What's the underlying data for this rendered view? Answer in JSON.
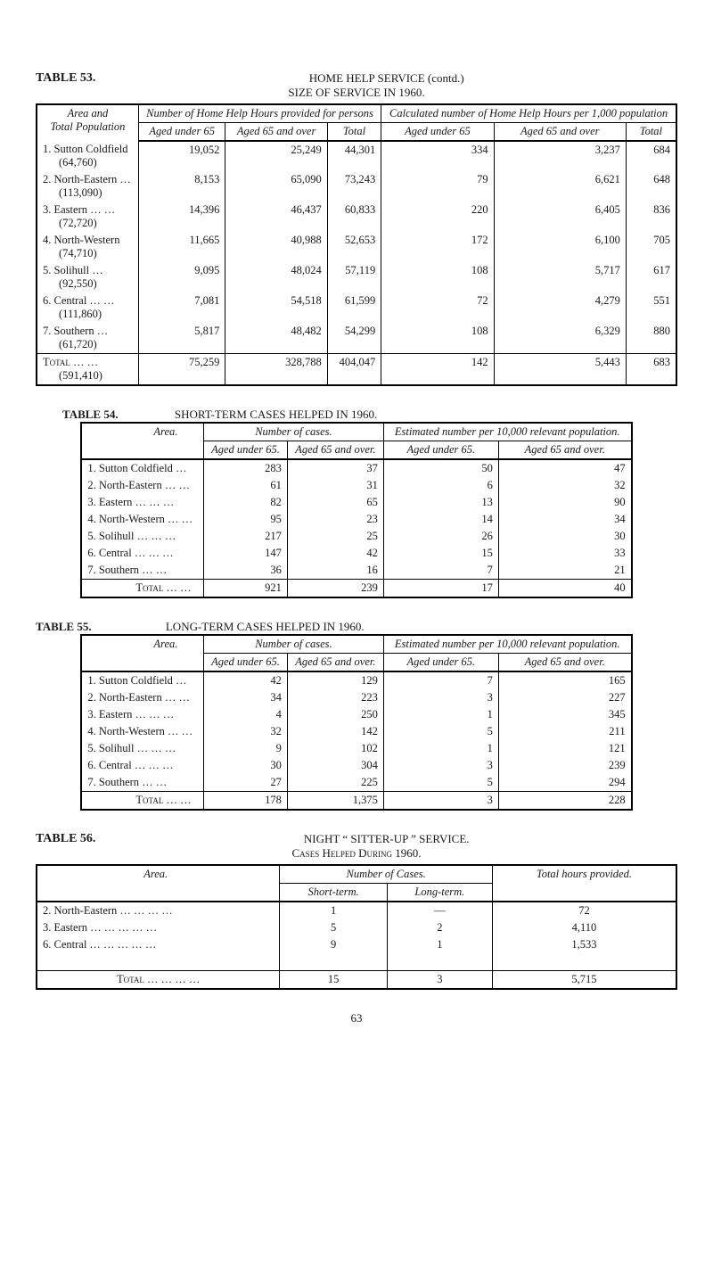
{
  "header": {
    "super_title": "HOME HELP SERVICE (contd.)",
    "table53_label": "TABLE 53.",
    "table53_title": "SIZE OF SERVICE IN 1960."
  },
  "t53": {
    "area_head_line1": "Area and",
    "area_head_line2": "Total Population",
    "group1": "Number of Home Help Hours provided for persons",
    "group2": "Calculated number of Home Help Hours per 1,000 population",
    "sub": {
      "aged_under": "Aged under 65",
      "aged_over": "Aged 65 and over",
      "total": "Total"
    },
    "rows": [
      {
        "area": "1. Sutton Coldfield",
        "pop": "(64,760)",
        "c1": "19,052",
        "c2": "25,249",
        "c3": "44,301",
        "c4": "334",
        "c5": "3,237",
        "c6": "684"
      },
      {
        "area": "2. North-Eastern …",
        "pop": "(113,090)",
        "c1": "8,153",
        "c2": "65,090",
        "c3": "73,243",
        "c4": "79",
        "c5": "6,621",
        "c6": "648"
      },
      {
        "area": "3. Eastern …    …",
        "pop": "(72,720)",
        "c1": "14,396",
        "c2": "46,437",
        "c3": "60,833",
        "c4": "220",
        "c5": "6,405",
        "c6": "836"
      },
      {
        "area": "4. North-Western",
        "pop": "(74,710)",
        "c1": "11,665",
        "c2": "40,988",
        "c3": "52,653",
        "c4": "172",
        "c5": "6,100",
        "c6": "705"
      },
      {
        "area": "5. Solihull        …",
        "pop": "(92,550)",
        "c1": "9,095",
        "c2": "48,024",
        "c3": "57,119",
        "c4": "108",
        "c5": "5,717",
        "c6": "617"
      },
      {
        "area": "6. Central …    …",
        "pop": "(111,860)",
        "c1": "7,081",
        "c2": "54,518",
        "c3": "61,599",
        "c4": "72",
        "c5": "4,279",
        "c6": "551"
      },
      {
        "area": "7. Southern      …",
        "pop": "(61,720)",
        "c1": "5,817",
        "c2": "48,482",
        "c3": "54,299",
        "c4": "108",
        "c5": "6,329",
        "c6": "880"
      }
    ],
    "total": {
      "area": "Total      …    …",
      "pop": "(591,410)",
      "c1": "75,259",
      "c2": "328,788",
      "c3": "404,047",
      "c4": "142",
      "c5": "5,443",
      "c6": "683"
    }
  },
  "t54": {
    "label": "TABLE 54.",
    "title": "SHORT-TERM CASES HELPED IN 1960.",
    "area_head": "Area.",
    "group1": "Number of cases.",
    "group2": "Estimated number per 10,000 relevant population.",
    "sub": {
      "aged_under": "Aged under 65.",
      "aged_over": "Aged 65 and over."
    },
    "rows": [
      {
        "area": "1. Sutton Coldfield        …",
        "c1": "283",
        "c2": "37",
        "c3": "50",
        "c4": "47"
      },
      {
        "area": "2. North-Eastern …    …",
        "c1": "61",
        "c2": "31",
        "c3": "6",
        "c4": "32"
      },
      {
        "area": "3. Eastern …    …    …",
        "c1": "82",
        "c2": "65",
        "c3": "13",
        "c4": "90"
      },
      {
        "area": "4. North-Western …    …",
        "c1": "95",
        "c2": "23",
        "c3": "14",
        "c4": "34"
      },
      {
        "area": "5. Solihull …    …    …",
        "c1": "217",
        "c2": "25",
        "c3": "26",
        "c4": "30"
      },
      {
        "area": "6. Central …    …    …",
        "c1": "147",
        "c2": "42",
        "c3": "15",
        "c4": "33"
      },
      {
        "area": "7. Southern        …    …",
        "c1": "36",
        "c2": "16",
        "c3": "7",
        "c4": "21"
      }
    ],
    "total": {
      "area": "Total      …    …",
      "c1": "921",
      "c2": "239",
      "c3": "17",
      "c4": "40"
    }
  },
  "t55": {
    "label": "TABLE 55.",
    "title": "LONG-TERM CASES HELPED IN 1960.",
    "area_head": "Area.",
    "group1": "Number of cases.",
    "group2": "Estimated number per 10,000 relevant population.",
    "sub": {
      "aged_under": "Aged under 65.",
      "aged_over": "Aged 65 and over."
    },
    "rows": [
      {
        "area": "1. Sutton Coldfield        …",
        "c1": "42",
        "c2": "129",
        "c3": "7",
        "c4": "165"
      },
      {
        "area": "2. North-Eastern …    …",
        "c1": "34",
        "c2": "223",
        "c3": "3",
        "c4": "227"
      },
      {
        "area": "3. Eastern …    …    …",
        "c1": "4",
        "c2": "250",
        "c3": "1",
        "c4": "345"
      },
      {
        "area": "4. North-Western …    …",
        "c1": "32",
        "c2": "142",
        "c3": "5",
        "c4": "211"
      },
      {
        "area": "5. Solihull …    …    …",
        "c1": "9",
        "c2": "102",
        "c3": "1",
        "c4": "121"
      },
      {
        "area": "6. Central …    …    …",
        "c1": "30",
        "c2": "304",
        "c3": "3",
        "c4": "239"
      },
      {
        "area": "7. Southern        …    …",
        "c1": "27",
        "c2": "225",
        "c3": "5",
        "c4": "294"
      }
    ],
    "total": {
      "area": "Total      …    …",
      "c1": "178",
      "c2": "1,375",
      "c3": "3",
      "c4": "228"
    }
  },
  "t56": {
    "label": "TABLE 56.",
    "super_title": "NIGHT  “ SITTER-UP ”  SERVICE.",
    "title": "Cases Helped During 1960.",
    "area_head": "Area.",
    "group1": "Number of Cases.",
    "total_hours_head": "Total hours provided.",
    "sub": {
      "short_term": "Short-term.",
      "long_term": "Long-term."
    },
    "rows": [
      {
        "area": "2. North-Eastern    …    …    …    …",
        "c1": "1",
        "c2": "—",
        "c3": "72"
      },
      {
        "area": "3. Eastern     …    …    …    …    …",
        "c1": "5",
        "c2": "2",
        "c3": "4,110"
      },
      {
        "area": "6. Central     …    …    …    …    …",
        "c1": "9",
        "c2": "1",
        "c3": "1,533"
      }
    ],
    "total": {
      "area": "Total    …    …    …    …",
      "c1": "15",
      "c2": "3",
      "c3": "5,715"
    }
  },
  "page_number": "63"
}
